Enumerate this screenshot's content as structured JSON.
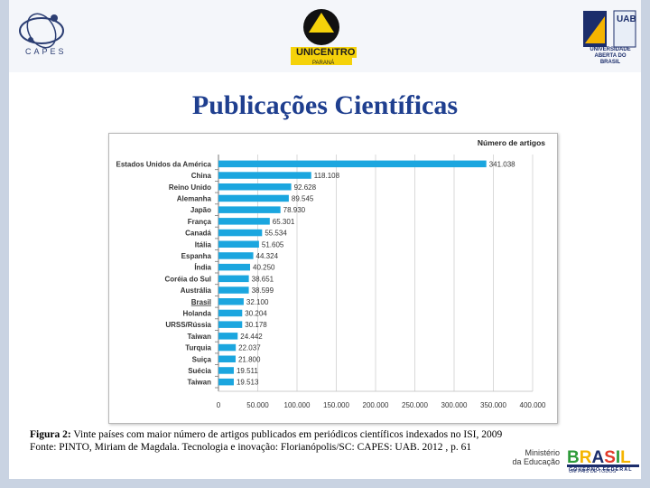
{
  "logos": {
    "capes": "CAPES",
    "unicentro": "UNICENTRO",
    "unicentro_sub": "PARANÁ",
    "uab_line1": "UNIVERSIDADE",
    "uab_line2": "ABERTA DO BRASIL",
    "uab_mark": "UAB"
  },
  "slide_title": "Publicações Científicas",
  "caption": {
    "label": "Figura 2:",
    "text": " Vinte países com maior número de artigos publicados em periódicos científicos indexados no ISI, 2009",
    "source": "Fonte: PINTO, Miriam de Magdala. Tecnologia e inovação: Florianópolis/SC: CAPES: UAB. 2012 , p. 61"
  },
  "footer": {
    "ministry_line1": "Ministério",
    "ministry_line2": "da Educação",
    "brasil": "BRASIL",
    "brasil_sub": "UM PAÍS DE TODOS",
    "gov": "GOVERNO FEDERAL"
  },
  "colors": {
    "bar": "#1ba6df",
    "title": "#1f3f8f",
    "frame": "#c9d3e2"
  },
  "chart_data": {
    "type": "bar",
    "orientation": "horizontal",
    "title": "Número de artigos",
    "categories": [
      "Estados Unidos da América",
      "China",
      "Reino Unido",
      "Alemanha",
      "Japão",
      "França",
      "Canadá",
      "Itália",
      "Espanha",
      "Índia",
      "Coréia do Sul",
      "Austrália",
      "Brasil",
      "Holanda",
      "URSS/Rússia",
      "Taiwan",
      "Turquia",
      "Suiça",
      "Suécia",
      "Taiwan"
    ],
    "values": [
      341038,
      118108,
      92628,
      89545,
      78930,
      65301,
      55534,
      51605,
      44324,
      40250,
      38651,
      38599,
      32100,
      30204,
      30178,
      24442,
      22037,
      21800,
      19511,
      19513
    ],
    "value_labels": [
      "341.038",
      "118.108",
      "92.628",
      "89.545",
      "78.930",
      "65.301",
      "55.534",
      "51.605",
      "44.324",
      "40.250",
      "38.651",
      "38.599",
      "32.100",
      "30.204",
      "30.178",
      "24.442",
      "22.037",
      "21.800",
      "19.511",
      "19.513"
    ],
    "x_ticks": [
      0,
      50000,
      100000,
      150000,
      200000,
      250000,
      300000,
      350000,
      400000
    ],
    "x_tick_labels": [
      "0",
      "50.000",
      "100.000",
      "150.000",
      "200.000",
      "250.000",
      "300.000",
      "350.000",
      "400.000"
    ],
    "xlim": [
      0,
      400000
    ],
    "grid": "vertical",
    "legend": "none"
  }
}
